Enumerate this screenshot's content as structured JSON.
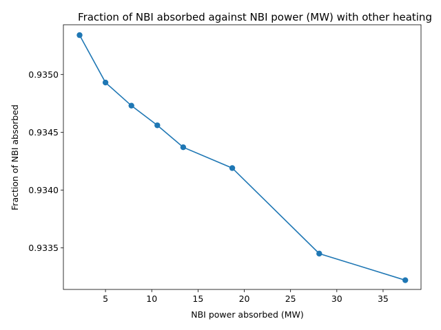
{
  "chart_data": {
    "type": "line",
    "title": "Fraction of NBI absorbed against NBI power (MW) with other heating",
    "xlabel": "NBI power absorbed (MW)",
    "ylabel": "Fraction of NBI absorbed",
    "xlim": [
      0.45,
      39.1
    ],
    "ylim": [
      0.93314,
      0.93543
    ],
    "xticks": [
      5,
      10,
      15,
      20,
      25,
      30,
      35
    ],
    "yticks": [
      0.9335,
      0.934,
      0.9345,
      0.935
    ],
    "xtick_labels": [
      "5",
      "10",
      "15",
      "20",
      "25",
      "30",
      "35"
    ],
    "ytick_labels": [
      "0.9335",
      "0.9340",
      "0.9345",
      "0.9350"
    ],
    "grid": false,
    "series": [
      {
        "color": "#1f77b4",
        "marker": "circle",
        "x": [
          2.2,
          5.0,
          7.8,
          10.6,
          13.4,
          18.7,
          28.1,
          37.4
        ],
        "y": [
          0.93534,
          0.93493,
          0.93473,
          0.93456,
          0.93437,
          0.93419,
          0.93345,
          0.93322
        ]
      }
    ]
  }
}
